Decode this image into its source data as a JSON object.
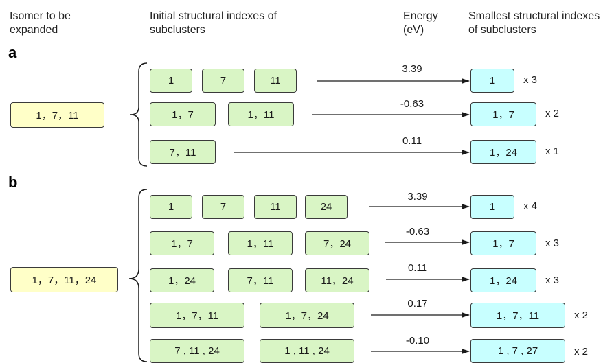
{
  "headers": {
    "isomer": "Isomer to be expanded",
    "initial": "Initial structural indexes of subclusters",
    "energy": "Energy (eV)",
    "smallest": "Smallest structural indexes of subclusters"
  },
  "panel_a": {
    "label": "a",
    "isomer": "1，7，11",
    "rows": [
      {
        "initial": [
          "1",
          "7",
          "11"
        ],
        "energy": "3.39",
        "smallest": "1",
        "mult": "x 3"
      },
      {
        "initial": [
          "1，7",
          "1，11"
        ],
        "energy": "-0.63",
        "smallest": "1，7",
        "mult": "x 2"
      },
      {
        "initial": [
          "7，11"
        ],
        "energy": "0.11",
        "smallest": "1，24",
        "mult": "x 1"
      }
    ]
  },
  "panel_b": {
    "label": "b",
    "isomer": "1，7，11，24",
    "rows": [
      {
        "initial": [
          "1",
          "7",
          "11",
          "24"
        ],
        "energy": "3.39",
        "smallest": "1",
        "mult": "x 4"
      },
      {
        "initial": [
          "1，7",
          "1，11",
          "7，24"
        ],
        "energy": "-0.63",
        "smallest": "1，7",
        "mult": "x 3"
      },
      {
        "initial": [
          "1，24",
          "7，11",
          "11，24"
        ],
        "energy": "0.11",
        "smallest": "1，24",
        "mult": "x 3"
      },
      {
        "initial": [
          "1，7，11",
          "1，7，24"
        ],
        "energy": "0.17",
        "smallest": "1，7，11",
        "mult": "x 2"
      },
      {
        "initial": [
          "7 , 11 , 24",
          "1 , 11 , 24"
        ],
        "energy": "-0.10",
        "smallest": "1 , 7 , 27",
        "mult": "x 2"
      }
    ]
  }
}
